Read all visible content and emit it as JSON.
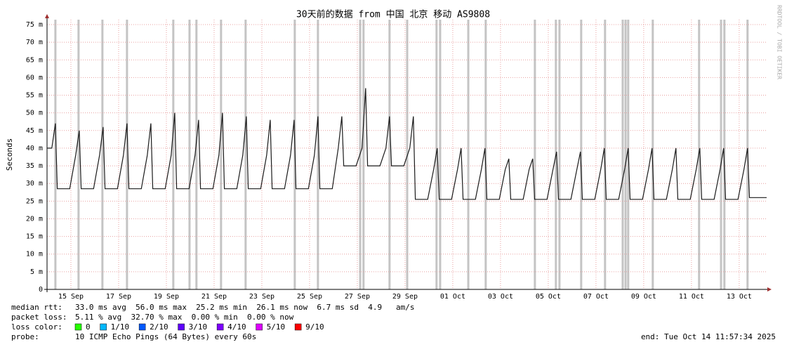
{
  "chart_data": {
    "type": "line",
    "title": "30天前的数据 from 中国 北京 移动 AS9808",
    "y_label": "Seconds",
    "watermark": "RRDTOOL / TOBI OETIKER",
    "xlim": [
      0,
      30.18
    ],
    "xticks": [
      {
        "value": 1,
        "label": "15 Sep"
      },
      {
        "value": 3,
        "label": "17 Sep"
      },
      {
        "value": 5,
        "label": "19 Sep"
      },
      {
        "value": 7,
        "label": "21 Sep"
      },
      {
        "value": 9,
        "label": "23 Sep"
      },
      {
        "value": 11,
        "label": "25 Sep"
      },
      {
        "value": 13,
        "label": "27 Sep"
      },
      {
        "value": 15,
        "label": "29 Sep"
      },
      {
        "value": 17,
        "label": "01 Oct"
      },
      {
        "value": 19,
        "label": "03 Oct"
      },
      {
        "value": 21,
        "label": "05 Oct"
      },
      {
        "value": 23,
        "label": "07 Oct"
      },
      {
        "value": 25,
        "label": "09 Oct"
      },
      {
        "value": 27,
        "label": "11 Oct"
      },
      {
        "value": 29,
        "label": "13 Oct"
      }
    ],
    "ylim": [
      0,
      75
    ],
    "yticks": [
      0,
      {
        "value": 5,
        "label": "5 m"
      },
      {
        "value": 10,
        "label": "10 m"
      },
      {
        "value": 15,
        "label": "15 m"
      },
      {
        "value": 20,
        "label": "20 m"
      },
      {
        "value": 25,
        "label": "25 m"
      },
      {
        "value": 30,
        "label": "30 m"
      },
      {
        "value": 35,
        "label": "35 m"
      },
      {
        "value": 40,
        "label": "40 m"
      },
      {
        "value": 45,
        "label": "45 m"
      },
      {
        "value": 50,
        "label": "50 m"
      },
      {
        "value": 55,
        "label": "55 m"
      },
      {
        "value": 60,
        "label": "60 m"
      },
      {
        "value": 65,
        "label": "65 m"
      },
      {
        "value": 70,
        "label": "70 m"
      },
      {
        "value": 75,
        "label": "75 m"
      }
    ],
    "grid": true,
    "series": [
      {
        "color": "#1a1a1a",
        "x": [
          0,
          0.2,
          0.35,
          0.43,
          0.95,
          1.2,
          1.35,
          1.43,
          1.95,
          2.2,
          2.35,
          2.43,
          2.95,
          3.2,
          3.35,
          3.43,
          3.95,
          4.2,
          4.35,
          4.43,
          4.95,
          5.2,
          5.35,
          5.43,
          5.95,
          6.2,
          6.35,
          6.43,
          6.95,
          7.2,
          7.35,
          7.43,
          7.95,
          8.2,
          8.35,
          8.43,
          8.95,
          9.2,
          9.35,
          9.43,
          9.95,
          10.2,
          10.35,
          10.43,
          10.95,
          11.2,
          11.35,
          11.43,
          11.95,
          12.2,
          12.35,
          12.43,
          12.95,
          13.2,
          13.35,
          13.43,
          13.95,
          14.2,
          14.35,
          14.43,
          14.95,
          15.2,
          15.35,
          15.43,
          15.95,
          16.2,
          16.35,
          16.43,
          16.95,
          17.2,
          17.35,
          17.43,
          17.95,
          18.2,
          18.35,
          18.43,
          18.95,
          19.2,
          19.35,
          19.43,
          19.95,
          20.2,
          20.35,
          20.43,
          20.95,
          21.2,
          21.35,
          21.43,
          21.95,
          22.2,
          22.35,
          22.43,
          22.95,
          23.2,
          23.35,
          23.43,
          23.95,
          24.2,
          24.35,
          24.43,
          24.95,
          25.2,
          25.35,
          25.43,
          25.95,
          26.2,
          26.35,
          26.43,
          26.95,
          27.2,
          27.35,
          27.43,
          27.95,
          28.2,
          28.35,
          28.43,
          28.95,
          29.2,
          29.35,
          29.43,
          30.15
        ],
        "values": [
          40,
          40,
          47,
          28.5,
          28.5,
          38,
          45,
          28.5,
          28.5,
          38,
          46,
          28.5,
          28.5,
          38,
          47,
          28.5,
          28.5,
          38,
          47,
          28.5,
          28.5,
          38,
          50,
          28.5,
          28.5,
          38,
          48,
          28.5,
          28.5,
          38,
          50,
          28.5,
          28.5,
          38,
          49,
          28.5,
          28.5,
          38,
          48,
          28.5,
          28.5,
          38,
          48,
          28.5,
          28.5,
          38,
          49,
          28.5,
          28.5,
          40,
          49,
          35,
          35,
          40,
          57,
          35,
          35,
          40,
          49,
          35,
          35,
          40,
          49,
          25.5,
          25.5,
          34,
          40,
          25.5,
          25.5,
          34,
          40,
          25.5,
          25.5,
          34,
          40,
          25.5,
          25.5,
          34,
          37,
          25.5,
          25.5,
          34,
          37,
          25.5,
          25.5,
          34,
          39,
          25.5,
          25.5,
          34,
          39,
          25.5,
          25.5,
          34,
          40,
          25.5,
          25.5,
          34,
          40,
          25.5,
          25.5,
          34,
          40,
          25.5,
          25.5,
          34,
          40,
          25.5,
          25.5,
          34,
          40,
          25.5,
          25.5,
          34,
          40,
          25.5,
          25.5,
          34,
          40,
          26,
          26
        ]
      }
    ],
    "loss_events": {
      "color": "#c4c4c4",
      "x": [
        0.35,
        1.32,
        2.32,
        3.35,
        5.29,
        5.97,
        6.26,
        7.29,
        8.32,
        10.38,
        11.35,
        13.12,
        13.26,
        14.35,
        15.09,
        16.32,
        16.47,
        17.65,
        18.38,
        20.44,
        21.32,
        21.47,
        22.38,
        23.38,
        24.12,
        24.24,
        24.35,
        25.38,
        27.32,
        28.24,
        28.38,
        29.35
      ]
    },
    "stats": [
      {
        "label": "median rtt:",
        "text": "33.0 ms avg  56.0 ms max  25.2 ms min  26.1 ms now  6.7 ms sd  4.9   am/s"
      },
      {
        "label": "packet loss:",
        "text": "5.11 % avg  32.70 % max  0.00 % min  0.00 % now"
      }
    ],
    "loss_legend": {
      "label": "loss color:",
      "items": [
        {
          "label": "0",
          "color": "#26ff00"
        },
        {
          "label": "1/10",
          "color": "#00b8ff"
        },
        {
          "label": "2/10",
          "color": "#0059ff"
        },
        {
          "label": "3/10",
          "color": "#5e00ff"
        },
        {
          "label": "4/10",
          "color": "#7e00ff"
        },
        {
          "label": "5/10",
          "color": "#dd00ff"
        },
        {
          "label": "9/10",
          "color": "#ff0000"
        }
      ]
    },
    "probe": {
      "label": "probe:",
      "text": "10 ICMP Echo Pings (64 Bytes) every 60s"
    },
    "end": "end: Tue Oct 14 11:57:34 2025"
  }
}
